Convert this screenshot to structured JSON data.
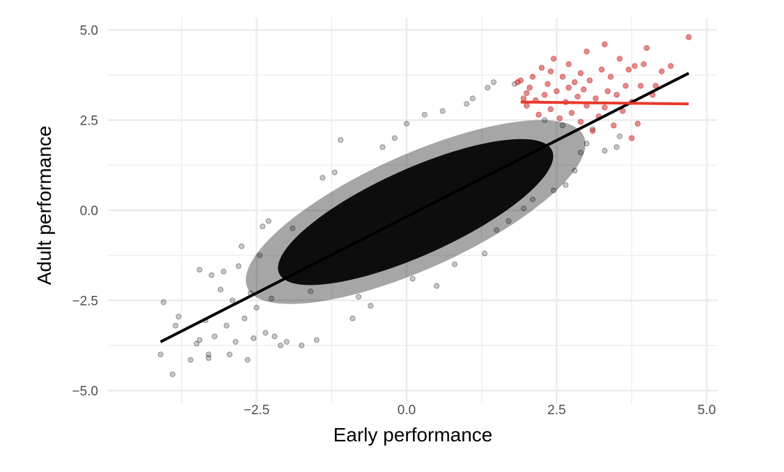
{
  "chart_data": {
    "type": "scatter",
    "title": "",
    "xlabel": "Early performance",
    "ylabel": "Adult performance",
    "xlim": [
      -4.15,
      4.82
    ],
    "ylim": [
      -5.0,
      5.0
    ],
    "x_ticks": [
      -2.5,
      0.0,
      2.5,
      5.0
    ],
    "x_tick_labels": [
      "−2.5",
      "0.0",
      "2.5",
      "5.0"
    ],
    "y_ticks": [
      -5.0,
      -2.5,
      0.0,
      2.5,
      5.0
    ],
    "y_tick_labels": [
      "−5.0",
      "−2.5",
      "0.0",
      "2.5",
      "5.0"
    ],
    "grid": true,
    "legend": "none",
    "colors": {
      "all_points": "#000000",
      "top_points": "#cc2b2b",
      "fit_all": "#000000",
      "fit_top": "#e8392a",
      "grid": "#ebebeb",
      "tick_text": "#4d4d4d"
    },
    "series": [
      {
        "points": [
          [
            -4.1,
            -4.0
          ],
          [
            -4.05,
            -2.55
          ],
          [
            -3.9,
            -4.55
          ],
          [
            -3.85,
            -3.2
          ],
          [
            -3.8,
            -2.95
          ],
          [
            -3.6,
            -4.15
          ],
          [
            -3.5,
            -3.7
          ],
          [
            -3.45,
            -1.65
          ],
          [
            -3.45,
            -3.6
          ],
          [
            -3.35,
            -3.05
          ],
          [
            -3.3,
            -4.0
          ],
          [
            -3.3,
            -4.1
          ],
          [
            -3.25,
            -1.8
          ],
          [
            -3.2,
            -3.5
          ],
          [
            -3.1,
            -2.2
          ],
          [
            -3.05,
            -1.7
          ],
          [
            -3.0,
            -3.2
          ],
          [
            -2.95,
            -4.0
          ],
          [
            -2.9,
            -2.5
          ],
          [
            -2.85,
            -3.65
          ],
          [
            -2.8,
            -1.55
          ],
          [
            -2.75,
            -1.0
          ],
          [
            -2.7,
            -3.0
          ],
          [
            -2.65,
            -4.15
          ],
          [
            -2.6,
            -2.3
          ],
          [
            -2.55,
            -3.55
          ],
          [
            -2.5,
            -2.7
          ],
          [
            -2.45,
            -1.25
          ],
          [
            -2.4,
            -0.45
          ],
          [
            -2.35,
            -3.4
          ],
          [
            -2.3,
            -0.3
          ],
          [
            -2.25,
            -2.45
          ],
          [
            -2.2,
            -3.5
          ],
          [
            -2.1,
            -3.75
          ],
          [
            -2.0,
            -3.65
          ],
          [
            -1.9,
            -0.5
          ],
          [
            -1.75,
            -3.75
          ],
          [
            -1.6,
            -2.25
          ],
          [
            -1.5,
            -3.6
          ],
          [
            -1.4,
            0.9
          ],
          [
            -1.2,
            1.05
          ],
          [
            -1.1,
            1.95
          ],
          [
            -0.9,
            -3.0
          ],
          [
            -0.8,
            -2.4
          ],
          [
            -0.6,
            -2.65
          ],
          [
            -0.4,
            1.75
          ],
          [
            -0.2,
            2.0
          ],
          [
            0.0,
            2.4
          ],
          [
            0.1,
            -1.9
          ],
          [
            0.3,
            2.65
          ],
          [
            0.5,
            -2.1
          ],
          [
            0.6,
            2.75
          ],
          [
            0.8,
            -1.5
          ],
          [
            1.0,
            2.95
          ],
          [
            1.1,
            3.1
          ],
          [
            1.3,
            -1.2
          ],
          [
            1.35,
            3.4
          ],
          [
            1.45,
            3.55
          ],
          [
            1.5,
            -0.55
          ],
          [
            1.7,
            -0.3
          ],
          [
            1.8,
            3.5
          ],
          [
            1.95,
            0.05
          ],
          [
            2.1,
            0.3
          ],
          [
            2.25,
            1.8
          ],
          [
            2.3,
            2.5
          ],
          [
            2.45,
            0.55
          ],
          [
            2.6,
            2.35
          ],
          [
            2.65,
            0.7
          ],
          [
            2.8,
            1.1
          ],
          [
            2.9,
            1.6
          ],
          [
            3.0,
            1.85
          ],
          [
            3.1,
            2.25
          ],
          [
            3.3,
            1.65
          ],
          [
            3.5,
            1.75
          ],
          [
            3.55,
            2.05
          ]
        ]
      },
      {
        "points": [
          [
            1.85,
            3.55
          ],
          [
            1.9,
            3.6
          ],
          [
            1.95,
            3.1
          ],
          [
            2.0,
            2.9
          ],
          [
            2.0,
            3.25
          ],
          [
            2.05,
            3.4
          ],
          [
            2.1,
            3.7
          ],
          [
            2.15,
            3.05
          ],
          [
            2.2,
            2.65
          ],
          [
            2.25,
            3.95
          ],
          [
            2.3,
            3.2
          ],
          [
            2.35,
            3.5
          ],
          [
            2.4,
            2.8
          ],
          [
            2.4,
            3.85
          ],
          [
            2.45,
            4.2
          ],
          [
            2.5,
            3.3
          ],
          [
            2.55,
            2.55
          ],
          [
            2.6,
            3.7
          ],
          [
            2.65,
            3.0
          ],
          [
            2.7,
            3.4
          ],
          [
            2.7,
            4.05
          ],
          [
            2.75,
            2.7
          ],
          [
            2.8,
            3.55
          ],
          [
            2.85,
            3.15
          ],
          [
            2.9,
            2.45
          ],
          [
            2.9,
            3.8
          ],
          [
            2.95,
            3.35
          ],
          [
            3.0,
            2.9
          ],
          [
            3.0,
            4.4
          ],
          [
            3.05,
            3.6
          ],
          [
            3.1,
            2.2
          ],
          [
            3.15,
            3.1
          ],
          [
            3.2,
            2.6
          ],
          [
            3.25,
            3.9
          ],
          [
            3.3,
            2.85
          ],
          [
            3.3,
            4.6
          ],
          [
            3.35,
            3.3
          ],
          [
            3.4,
            3.7
          ],
          [
            3.45,
            2.35
          ],
          [
            3.5,
            3.2
          ],
          [
            3.55,
            4.2
          ],
          [
            3.6,
            2.75
          ],
          [
            3.65,
            3.45
          ],
          [
            3.7,
            3.9
          ],
          [
            3.75,
            2.0
          ],
          [
            3.75,
            3.0
          ],
          [
            3.8,
            4.0
          ],
          [
            3.85,
            2.4
          ],
          [
            3.9,
            3.45
          ],
          [
            3.95,
            4.05
          ],
          [
            4.0,
            4.5
          ],
          [
            4.1,
            3.2
          ],
          [
            4.15,
            3.45
          ],
          [
            4.25,
            3.85
          ],
          [
            4.4,
            4.0
          ],
          [
            4.7,
            4.8
          ]
        ]
      }
    ],
    "fit_lines": [
      {
        "x": [
          -4.1,
          4.7
        ],
        "y": [
          -3.65,
          3.8
        ]
      },
      {
        "x": [
          1.9,
          4.7
        ],
        "y": [
          3.0,
          2.95
        ]
      }
    ]
  }
}
